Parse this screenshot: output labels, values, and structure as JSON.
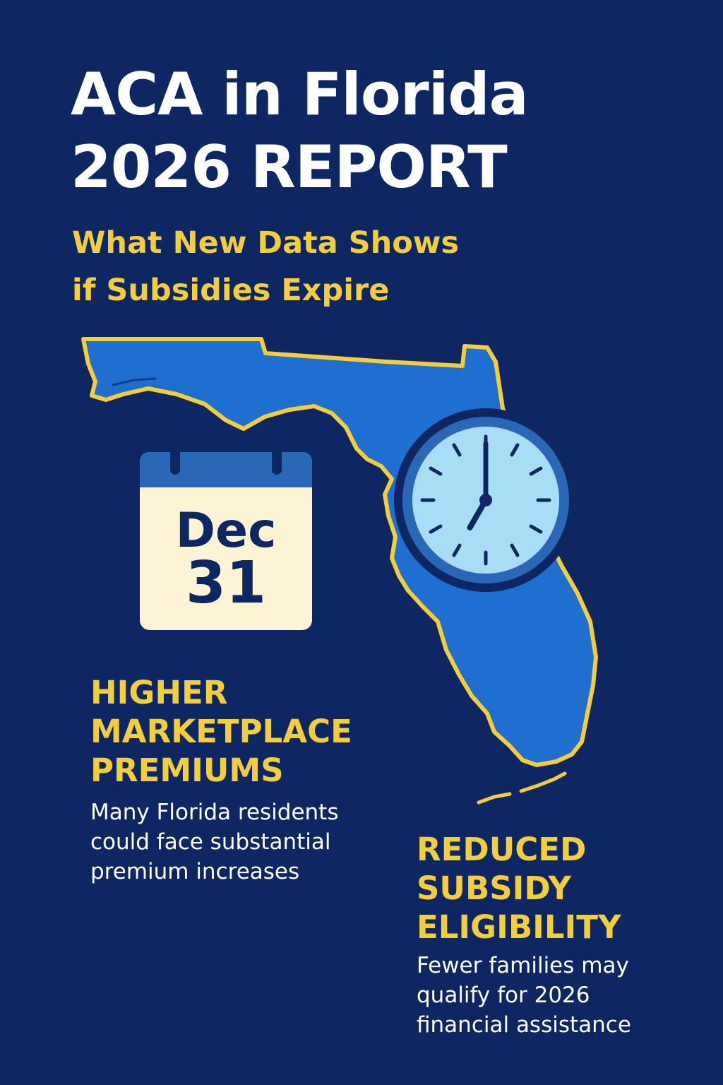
{
  "header": {
    "title_line1": "ACA in Florida",
    "title_line2": "2026 REPORT",
    "subtitle_line1": "What New Data Shows",
    "subtitle_line2": "if Subsidies Expire"
  },
  "calendar": {
    "month": "Dec",
    "day": "31"
  },
  "clock": {
    "hour": 7,
    "minute": 0
  },
  "sections": [
    {
      "heading_lines": [
        "HIGHER",
        "MARKETPLACE",
        "PREMIUMS"
      ],
      "body_lines": [
        "Many Florida residents",
        "could face substantial",
        "premium increases"
      ]
    },
    {
      "heading_lines": [
        "REDUCED",
        "SUBSIDY",
        "ELIGIBILITY"
      ],
      "body_lines": [
        "Fewer families may",
        "qualify for 2026",
        "financial assistance"
      ]
    }
  ],
  "colors": {
    "background": "#0e2763",
    "title": "#ffffff",
    "accent_yellow": "#f2cd3c",
    "map_blue": "#1f6fd0",
    "calendar_paper": "#fdf4d6",
    "clock_face": "#a9ddf5",
    "clock_rim": "#2a67b6"
  },
  "icons": [
    "florida-map-icon",
    "calendar-icon",
    "clock-icon"
  ]
}
